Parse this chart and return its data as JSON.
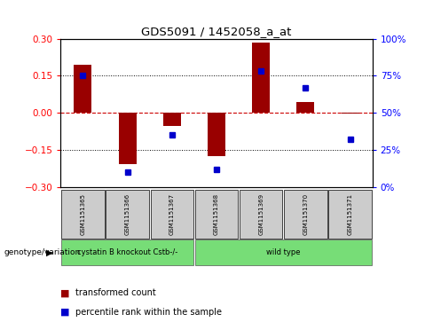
{
  "title": "GDS5091 / 1452058_a_at",
  "samples": [
    "GSM1151365",
    "GSM1151366",
    "GSM1151367",
    "GSM1151368",
    "GSM1151369",
    "GSM1151370",
    "GSM1151371"
  ],
  "red_values": [
    0.195,
    -0.21,
    -0.055,
    -0.175,
    0.285,
    0.045,
    -0.005
  ],
  "blue_values_pct": [
    75,
    10,
    35,
    12,
    78,
    67,
    32
  ],
  "ylim_left": [
    -0.3,
    0.3
  ],
  "ylim_right": [
    0,
    100
  ],
  "yticks_left": [
    -0.3,
    -0.15,
    0,
    0.15,
    0.3
  ],
  "yticks_right": [
    0,
    25,
    50,
    75,
    100
  ],
  "ytick_labels_right": [
    "0%",
    "25%",
    "50%",
    "75%",
    "100%"
  ],
  "bar_color": "#990000",
  "dot_color": "#0000cc",
  "zero_line_color": "#cc0000",
  "grid_color": "#000000",
  "legend_red_label": "transformed count",
  "legend_blue_label": "percentile rank within the sample",
  "genotype_label": "genotype/variation",
  "bar_width": 0.4,
  "group_boundaries": [
    [
      0,
      3,
      "cystatin B knockout Cstb-/-",
      "#77dd77"
    ],
    [
      3,
      7,
      "wild type",
      "#77dd77"
    ]
  ]
}
